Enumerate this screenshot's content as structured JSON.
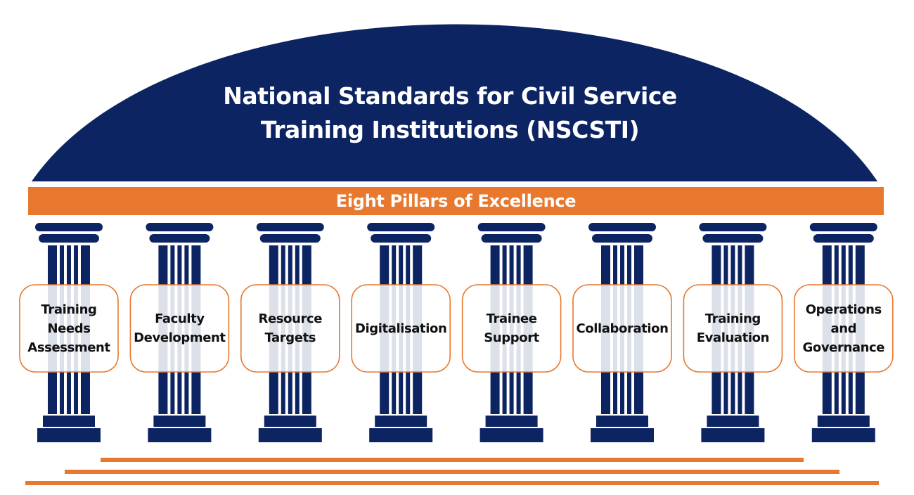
{
  "colors": {
    "navy": "#0d2463",
    "orange": "#e8782e",
    "label_fill": "#ffffff"
  },
  "dome": {
    "title_line_1": "National Standards for Civil Service",
    "title_line_2": "Training Institutions (NSCSTI)"
  },
  "banner": {
    "label": "Eight Pillars of Excellence"
  },
  "pillars": [
    {
      "label": "Training\nNeeds\nAssessment"
    },
    {
      "label": "Faculty\nDevelopment"
    },
    {
      "label": "Resource\nTargets"
    },
    {
      "label": "Digitalisation"
    },
    {
      "label": "Trainee\nSupport"
    },
    {
      "label": "Collaboration"
    },
    {
      "label": "Training\nEvaluation"
    },
    {
      "label": "Operations\nand\nGovernance"
    }
  ],
  "foundation": {
    "steps": 3
  }
}
